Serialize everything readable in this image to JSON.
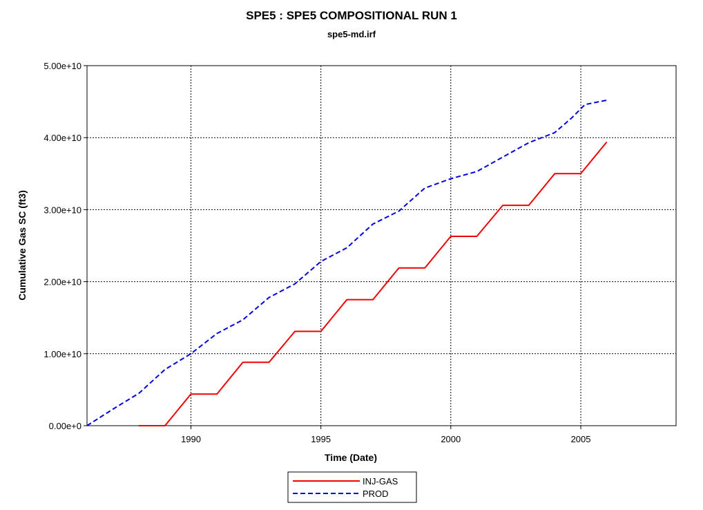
{
  "chart_data": {
    "type": "line",
    "title": "SPE5 :  SPE5 COMPOSITIONAL RUN 1",
    "subtitle": "spe5-md.irf",
    "xlabel": "Time (Date)",
    "ylabel": "Cumulative Gas SC (ft3)",
    "xlim": [
      "1986-01-01",
      "2008-09-01"
    ],
    "ylim": [
      0,
      50000000000
    ],
    "x_ticks": [
      {
        "date": "1990-01-01",
        "label": "1990"
      },
      {
        "date": "1995-01-01",
        "label": "1995"
      },
      {
        "date": "2000-01-01",
        "label": "2000"
      },
      {
        "date": "2005-01-01",
        "label": "2005"
      }
    ],
    "y_ticks": [
      {
        "value": 0,
        "label": "0.00e+0"
      },
      {
        "value": 10000000000,
        "label": "1.00e+10"
      },
      {
        "value": 20000000000,
        "label": "2.00e+10"
      },
      {
        "value": 30000000000,
        "label": "3.00e+10"
      },
      {
        "value": 40000000000,
        "label": "4.00e+10"
      },
      {
        "value": 50000000000,
        "label": "5.00e+10"
      }
    ],
    "grid": true,
    "legend": "bottom-center",
    "series": [
      {
        "name": "INJ-GAS",
        "color": "#ee0000",
        "style": "solid",
        "points": [
          [
            "1988-01-01",
            0
          ],
          [
            "1989-01-01",
            0
          ],
          [
            "1990-01-01",
            4400000000
          ],
          [
            "1991-01-01",
            4400000000
          ],
          [
            "1992-01-01",
            8800000000
          ],
          [
            "1993-01-01",
            8800000000
          ],
          [
            "1994-01-01",
            13100000000
          ],
          [
            "1995-01-01",
            13100000000
          ],
          [
            "1996-01-01",
            17500000000
          ],
          [
            "1997-01-01",
            17500000000
          ],
          [
            "1998-01-01",
            21900000000
          ],
          [
            "1999-01-01",
            21900000000
          ],
          [
            "2000-01-01",
            26300000000
          ],
          [
            "2001-01-01",
            26300000000
          ],
          [
            "2002-01-01",
            30600000000
          ],
          [
            "2003-01-01",
            30600000000
          ],
          [
            "2004-01-01",
            35000000000
          ],
          [
            "2005-01-01",
            35000000000
          ],
          [
            "2006-01-01",
            39400000000
          ]
        ]
      },
      {
        "name": "PROD",
        "color": "#0000dd",
        "style": "dashed",
        "points": [
          [
            "1986-01-01",
            0
          ],
          [
            "1987-01-01",
            2300000000
          ],
          [
            "1988-01-01",
            4500000000
          ],
          [
            "1989-01-01",
            7800000000
          ],
          [
            "1990-01-01",
            10000000000
          ],
          [
            "1991-01-01",
            12800000000
          ],
          [
            "1992-01-01",
            14700000000
          ],
          [
            "1993-01-01",
            17800000000
          ],
          [
            "1994-01-01",
            19700000000
          ],
          [
            "1995-01-01",
            22800000000
          ],
          [
            "1996-01-01",
            24700000000
          ],
          [
            "1997-01-01",
            28000000000
          ],
          [
            "1998-01-01",
            29800000000
          ],
          [
            "1999-01-01",
            33000000000
          ],
          [
            "2000-01-01",
            34300000000
          ],
          [
            "2001-01-01",
            35300000000
          ],
          [
            "2002-01-01",
            37300000000
          ],
          [
            "2003-01-01",
            39300000000
          ],
          [
            "2004-01-01",
            40700000000
          ],
          [
            "2004-09-01",
            42800000000
          ],
          [
            "2005-03-01",
            44600000000
          ],
          [
            "2006-01-01",
            45200000000
          ]
        ]
      }
    ]
  }
}
